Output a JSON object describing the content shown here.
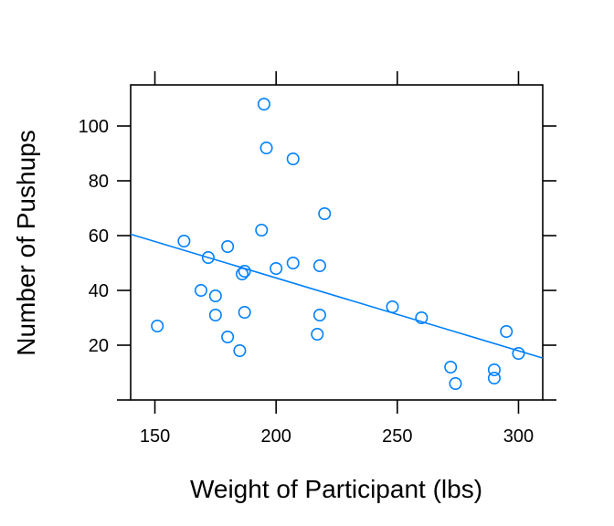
{
  "chart_data": {
    "type": "scatter",
    "title": "",
    "xlabel": "Weight of Participant (lbs)",
    "ylabel": "Number of Pushups",
    "xlim": [
      140,
      310
    ],
    "ylim": [
      0,
      115
    ],
    "x_ticks": [
      150,
      200,
      250,
      300
    ],
    "y_ticks": [
      20,
      40,
      60,
      80,
      100
    ],
    "grid": false,
    "legend": "none",
    "point_color": "#0080ff",
    "line_color": "#0080ff",
    "points": [
      {
        "x": 151,
        "y": 27
      },
      {
        "x": 162,
        "y": 58
      },
      {
        "x": 169,
        "y": 40
      },
      {
        "x": 172,
        "y": 52
      },
      {
        "x": 175,
        "y": 38
      },
      {
        "x": 175,
        "y": 31
      },
      {
        "x": 180,
        "y": 56
      },
      {
        "x": 180,
        "y": 23
      },
      {
        "x": 185,
        "y": 18
      },
      {
        "x": 186,
        "y": 46
      },
      {
        "x": 187,
        "y": 47
      },
      {
        "x": 187,
        "y": 32
      },
      {
        "x": 194,
        "y": 62
      },
      {
        "x": 195,
        "y": 108
      },
      {
        "x": 196,
        "y": 92
      },
      {
        "x": 200,
        "y": 48
      },
      {
        "x": 207,
        "y": 88
      },
      {
        "x": 207,
        "y": 50
      },
      {
        "x": 217,
        "y": 24
      },
      {
        "x": 218,
        "y": 49
      },
      {
        "x": 218,
        "y": 31
      },
      {
        "x": 220,
        "y": 68
      },
      {
        "x": 248,
        "y": 34
      },
      {
        "x": 260,
        "y": 30
      },
      {
        "x": 272,
        "y": 12
      },
      {
        "x": 274,
        "y": 6
      },
      {
        "x": 290,
        "y": 11
      },
      {
        "x": 290,
        "y": 8
      },
      {
        "x": 295,
        "y": 25
      },
      {
        "x": 300,
        "y": 17
      }
    ],
    "regression_line": {
      "x": [
        140,
        310
      ],
      "y": [
        60.5,
        15.3
      ]
    }
  }
}
